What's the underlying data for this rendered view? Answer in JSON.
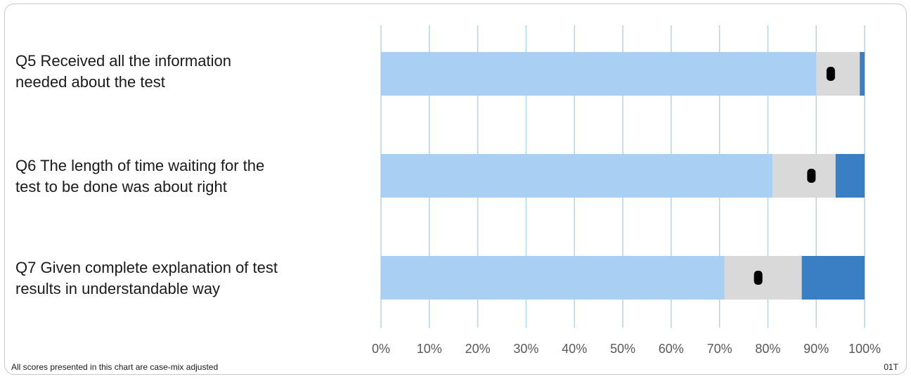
{
  "chart_data": {
    "type": "bar",
    "stacked": true,
    "orientation": "horizontal",
    "categories": [
      "Q5 Received all the information needed about the test",
      "Q6 The length of time waiting for the test to be done was about right",
      "Q7 Given complete explanation of test results in understandable way"
    ],
    "series": [
      {
        "values": [
          90,
          81,
          71
        ],
        "color": "#a9cff3"
      },
      {
        "values": [
          9,
          13,
          16
        ],
        "color": "#d9d9d9"
      },
      {
        "values": [
          1,
          6,
          13
        ],
        "color": "#3a7fc4"
      }
    ],
    "markers": [
      93,
      89,
      78
    ],
    "xlim": [
      0,
      100
    ],
    "x_ticks": [
      "0%",
      "10%",
      "20%",
      "30%",
      "40%",
      "50%",
      "60%",
      "70%",
      "80%",
      "90%",
      "100%"
    ],
    "grid": true
  },
  "labels": {
    "q5_line1": "Q5 Received all the information",
    "q5_line2": "needed about the test",
    "q6_line1": "Q6 The length of time waiting for the",
    "q6_line2": "test to be done was about right",
    "q7_line1": "Q7 Given complete explanation of test",
    "q7_line2": "results in understandable way"
  },
  "footer": {
    "note": "All scores presented in this chart are case-mix adjusted",
    "code": "01T"
  }
}
